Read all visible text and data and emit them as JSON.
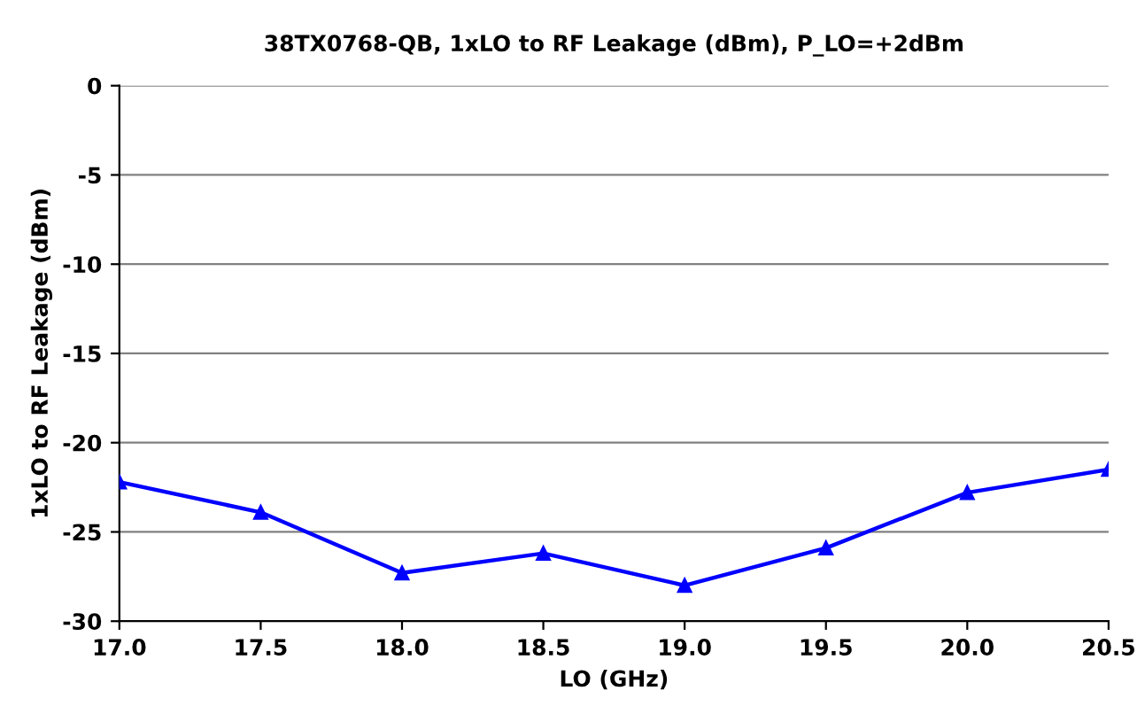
{
  "chart_data": {
    "type": "line",
    "title": "38TX0768-QB, 1xLO to RF Leakage (dBm), P_LO=+2dBm",
    "xlabel": "LO (GHz)",
    "ylabel": "1xLO to RF Leakage (dBm)",
    "x": [
      17.0,
      17.5,
      18.0,
      18.5,
      19.0,
      19.5,
      20.0,
      20.5
    ],
    "series": [
      {
        "color": "#0000ff",
        "values": [
          -22.2,
          -23.9,
          -27.3,
          -26.2,
          -28.0,
          -25.9,
          -22.8,
          -21.5
        ]
      }
    ],
    "xlim": [
      17.0,
      20.5
    ],
    "xticks": [
      {
        "value": 17.0,
        "label": "17.0"
      },
      {
        "value": 17.5,
        "label": "17.5"
      },
      {
        "value": 18.0,
        "label": "18.0"
      },
      {
        "value": 18.5,
        "label": "18.5"
      },
      {
        "value": 19.0,
        "label": "19.0"
      },
      {
        "value": 19.5,
        "label": "19.5"
      },
      {
        "value": 20.0,
        "label": "20.0"
      },
      {
        "value": 20.5,
        "label": "20.5"
      }
    ],
    "ylim": [
      -30,
      0
    ],
    "yticks": [
      -30,
      -25,
      -20,
      -15,
      -10,
      -5,
      0
    ],
    "grid": "y",
    "marker": "triangle",
    "line_style": "solid"
  }
}
